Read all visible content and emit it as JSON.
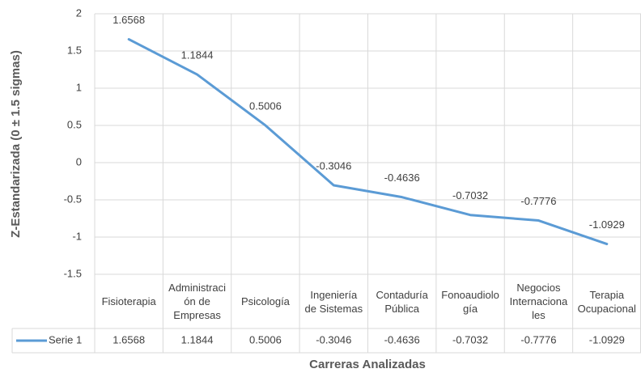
{
  "chart_data": {
    "type": "line",
    "y_label": "Z-Estandarizada (0 ± 1.5 sigmas)",
    "x_label": "Carreras Analizadas",
    "categories": [
      "Fisioterapia",
      "Administración de Empresas",
      "Psicología",
      "Ingeniería de Sistemas",
      "Contaduría Pública",
      "Fonoaudiología",
      "Negocios Internacionales",
      "Terapia Ocupacional"
    ],
    "series": [
      {
        "name": "Serie 1",
        "color": "#5b9bd5",
        "values": [
          1.6568,
          1.1844,
          0.5006,
          -0.3046,
          -0.4636,
          -0.7032,
          -0.7776,
          -1.0929
        ]
      }
    ],
    "ylim": [
      -1.5,
      2
    ],
    "yticks": [
      -1.5,
      -1,
      -0.5,
      0,
      0.5,
      1,
      1.5,
      2
    ],
    "grid": true,
    "data_labels": true,
    "data_table": true
  }
}
